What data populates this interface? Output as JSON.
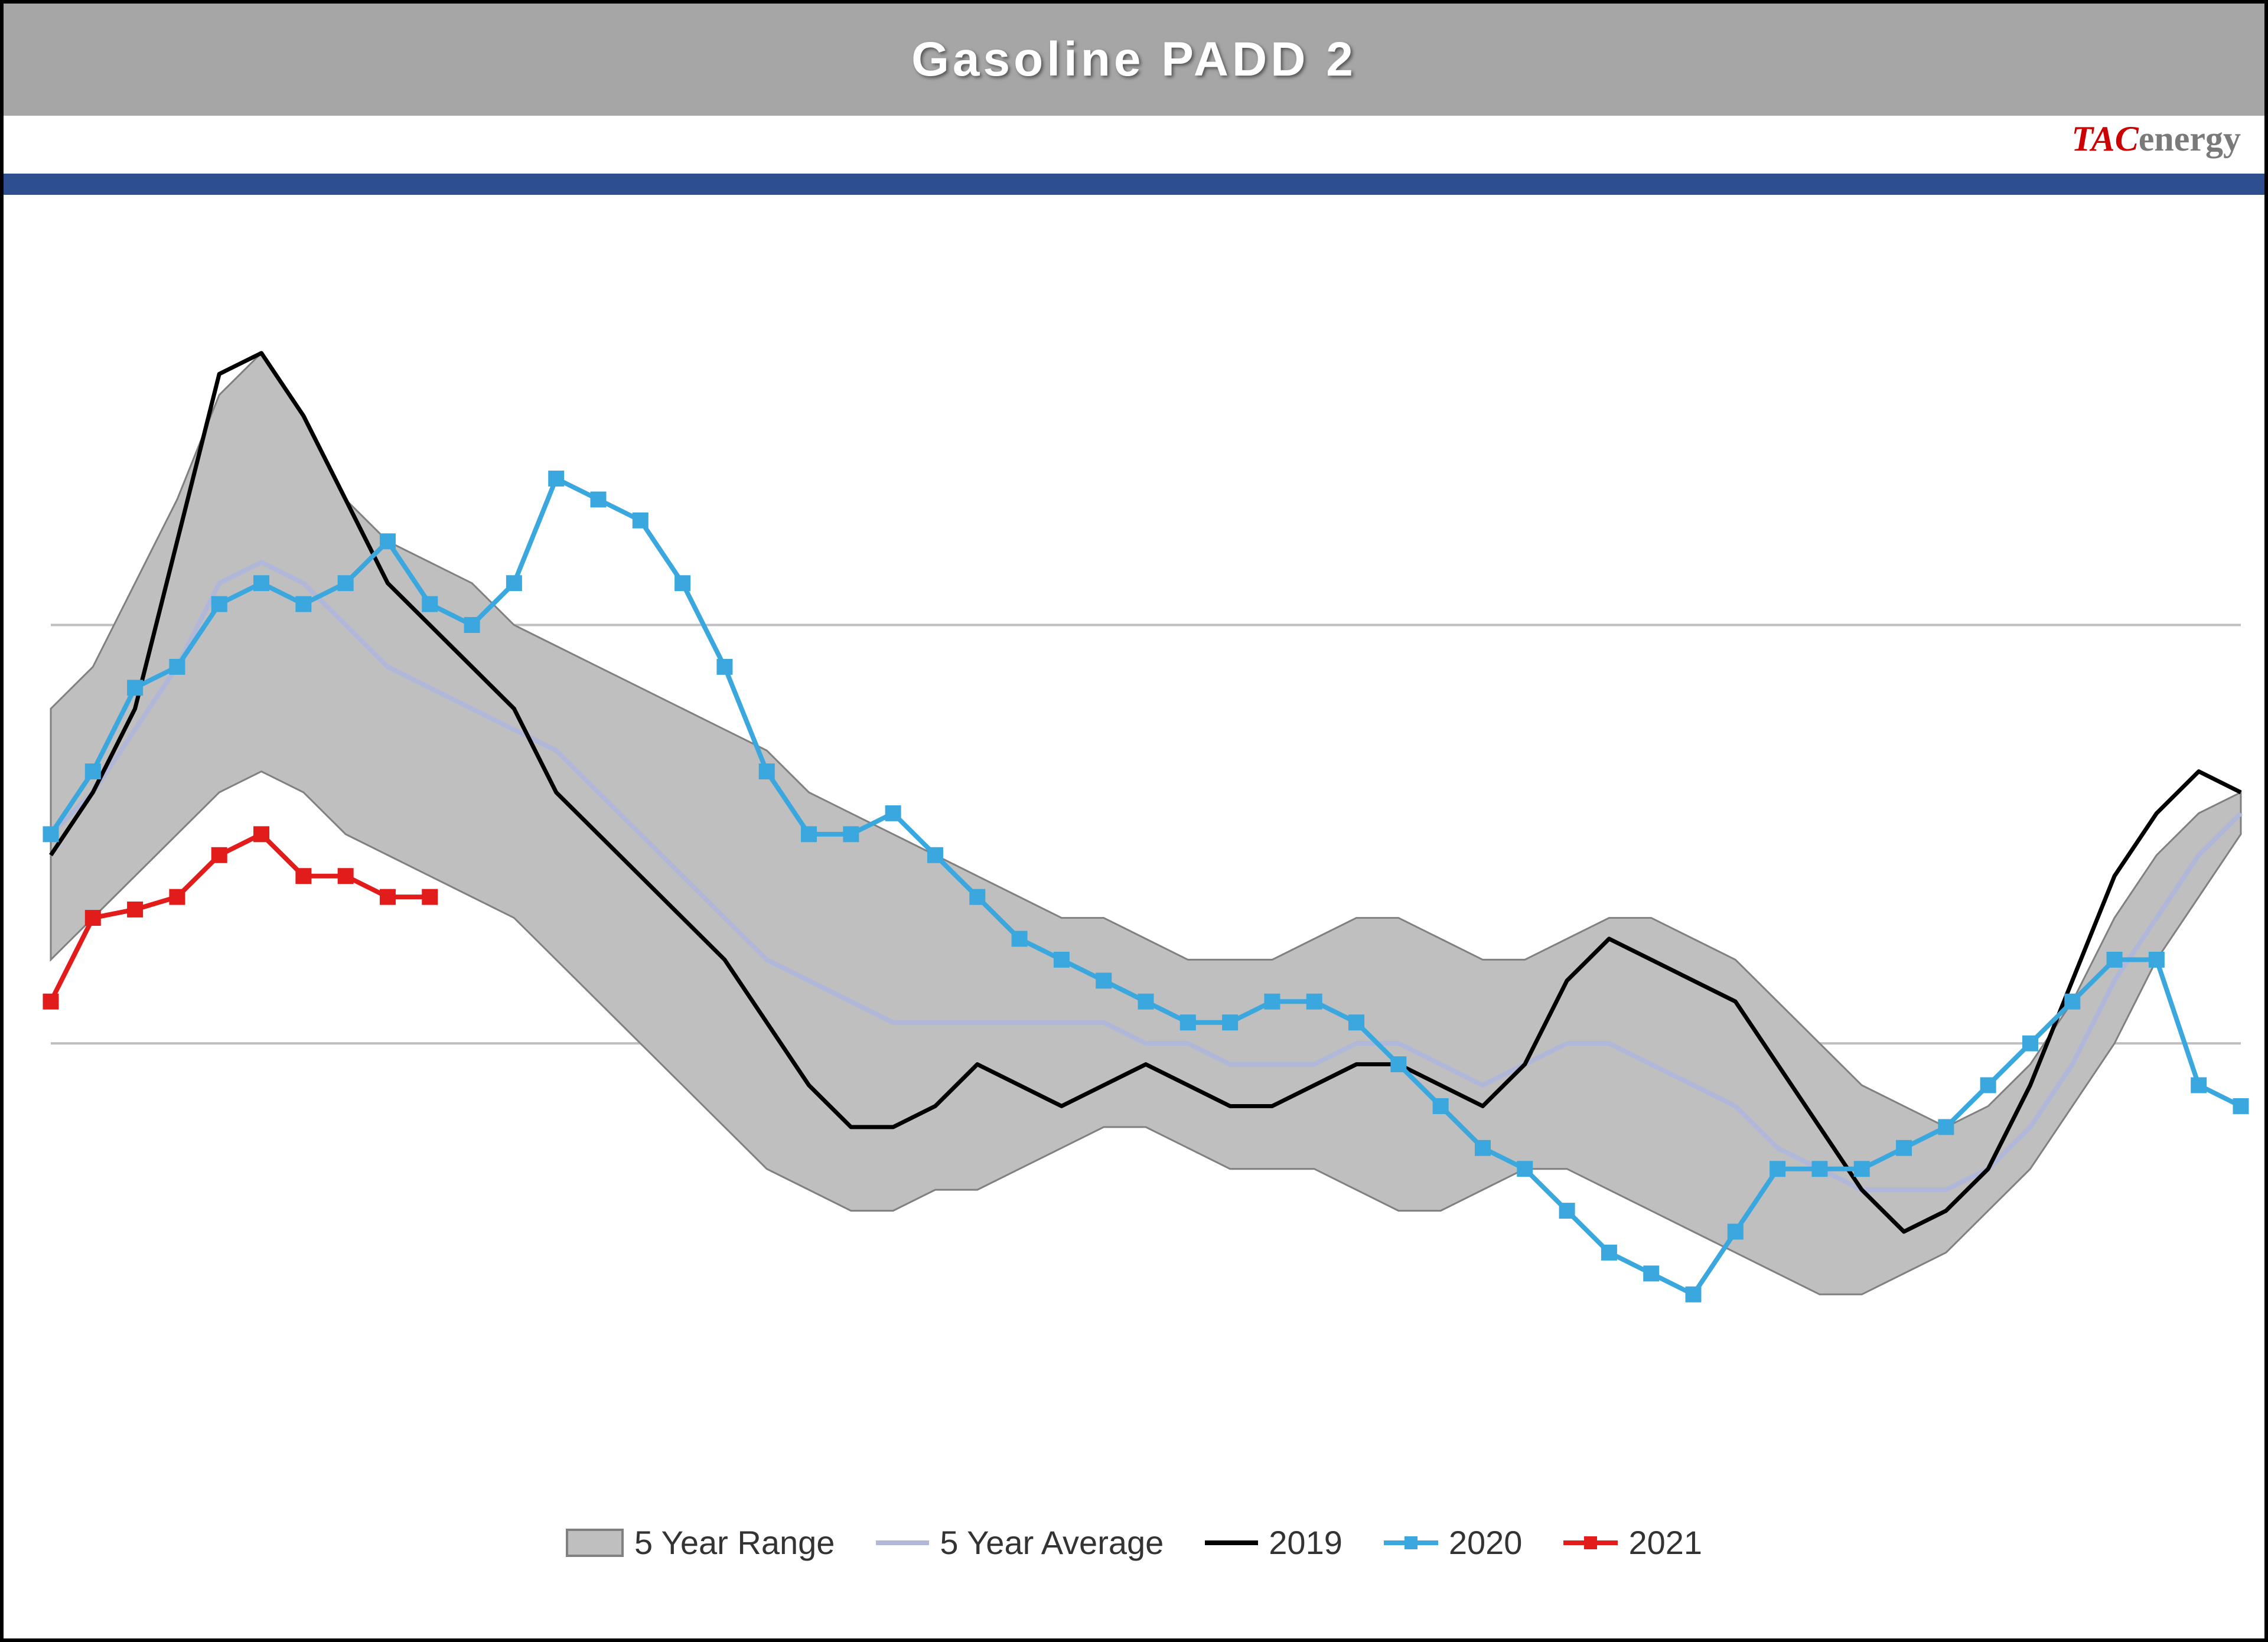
{
  "title": "Gasoline PADD 2",
  "logo": {
    "prefix": "TAC",
    "suffix": "energy"
  },
  "chart": {
    "type": "line-with-range",
    "background_color": "#ffffff",
    "grid_color": "#bfbfbf",
    "plot_border_color": "#000000",
    "x_count": 53,
    "ylim": [
      40,
      70
    ],
    "y_gridlines": [
      50,
      60
    ],
    "range": {
      "label": "5 Year Range",
      "fill": "#bfbfbf",
      "stroke": "#808080",
      "stroke_width": 3,
      "upper": [
        58.0,
        59.0,
        61.0,
        63.0,
        65.5,
        66.5,
        65.0,
        63.0,
        62.0,
        61.5,
        61.0,
        60.0,
        59.5,
        59.0,
        58.5,
        58.0,
        57.5,
        57.0,
        56.0,
        55.5,
        55.0,
        54.5,
        54.0,
        53.5,
        53.0,
        53.0,
        52.5,
        52.0,
        52.0,
        52.0,
        52.5,
        53.0,
        53.0,
        52.5,
        52.0,
        52.0,
        52.5,
        53.0,
        53.0,
        52.5,
        52.0,
        51.0,
        50.0,
        49.0,
        48.5,
        48.0,
        48.5,
        49.5,
        51.0,
        53.0,
        54.5,
        55.5,
        56.0
      ],
      "lower": [
        52.0,
        53.0,
        54.0,
        55.0,
        56.0,
        56.5,
        56.0,
        55.0,
        54.5,
        54.0,
        53.5,
        53.0,
        52.0,
        51.0,
        50.0,
        49.0,
        48.0,
        47.0,
        46.5,
        46.0,
        46.0,
        46.5,
        46.5,
        47.0,
        47.5,
        48.0,
        48.0,
        47.5,
        47.0,
        47.0,
        47.0,
        46.5,
        46.0,
        46.0,
        46.5,
        47.0,
        47.0,
        46.5,
        46.0,
        45.5,
        45.0,
        44.5,
        44.0,
        44.0,
        44.5,
        45.0,
        46.0,
        47.0,
        48.5,
        50.0,
        52.0,
        53.5,
        55.0
      ]
    },
    "series": [
      {
        "name": "5 Year Average",
        "label": "5 Year Average",
        "color": "#b0b7d8",
        "line_width": 8,
        "marker": null,
        "values": [
          55.0,
          56.0,
          57.5,
          59.0,
          61.0,
          61.5,
          61.0,
          60.0,
          59.0,
          58.5,
          58.0,
          57.5,
          57.0,
          56.0,
          55.0,
          54.0,
          53.0,
          52.0,
          51.5,
          51.0,
          50.5,
          50.5,
          50.5,
          50.5,
          50.5,
          50.5,
          50.0,
          50.0,
          49.5,
          49.5,
          49.5,
          50.0,
          50.0,
          49.5,
          49.0,
          49.5,
          50.0,
          50.0,
          49.5,
          49.0,
          48.5,
          47.5,
          47.0,
          46.5,
          46.5,
          46.5,
          47.0,
          48.0,
          49.5,
          51.5,
          53.0,
          54.5,
          55.5
        ]
      },
      {
        "name": "2019",
        "label": "2019",
        "color": "#000000",
        "line_width": 7,
        "marker": null,
        "values": [
          54.5,
          56.0,
          58.0,
          62.0,
          66.0,
          66.5,
          65.0,
          63.0,
          61.0,
          60.0,
          59.0,
          58.0,
          56.0,
          55.0,
          54.0,
          53.0,
          52.0,
          50.5,
          49.0,
          48.0,
          48.0,
          48.5,
          49.5,
          49.0,
          48.5,
          49.0,
          49.5,
          49.0,
          48.5,
          48.5,
          49.0,
          49.5,
          49.5,
          49.0,
          48.5,
          49.5,
          51.5,
          52.5,
          52.0,
          51.5,
          51.0,
          49.5,
          48.0,
          46.5,
          45.5,
          46.0,
          47.0,
          49.0,
          51.5,
          54.0,
          55.5,
          56.5,
          56.0
        ]
      },
      {
        "name": "2020",
        "label": "2020",
        "color": "#3aa7de",
        "line_width": 8,
        "marker": "square",
        "marker_size": 26,
        "values": [
          55.0,
          56.5,
          58.5,
          59.0,
          60.5,
          61.0,
          60.5,
          61.0,
          62.0,
          60.5,
          60.0,
          61.0,
          63.5,
          63.0,
          62.5,
          61.0,
          59.0,
          56.5,
          55.0,
          55.0,
          55.5,
          54.5,
          53.5,
          52.5,
          52.0,
          51.5,
          51.0,
          50.5,
          50.5,
          51.0,
          51.0,
          50.5,
          49.5,
          48.5,
          47.5,
          47.0,
          46.0,
          45.0,
          44.5,
          44.0,
          45.5,
          47.0,
          47.0,
          47.0,
          47.5,
          48.0,
          49.0,
          50.0,
          51.0,
          52.0,
          52.0,
          49.0,
          48.5
        ]
      },
      {
        "name": "2021",
        "label": "2021",
        "color": "#e21b1b",
        "line_width": 8,
        "marker": "square",
        "marker_size": 26,
        "values": [
          51.0,
          53.0,
          53.2,
          53.5,
          54.5,
          55.0,
          54.0,
          54.0,
          53.5,
          53.5
        ]
      }
    ],
    "legend": {
      "position": "bottom",
      "fontsize": 56,
      "text_color": "#333333"
    },
    "title_bar": {
      "background": "#a6a6a6",
      "text_color": "#ffffff",
      "fontsize": 82,
      "fontweight": "bold"
    },
    "accent_bar_color": "#2d4f8f"
  }
}
